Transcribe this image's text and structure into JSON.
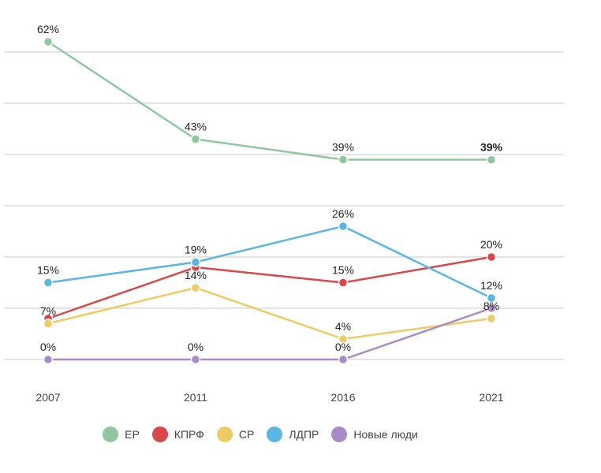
{
  "chart_data": {
    "type": "line",
    "categories": [
      "2007",
      "2011",
      "2016",
      "2021"
    ],
    "ylim": [
      0,
      70
    ],
    "grid": true,
    "legend_position": "bottom",
    "series": [
      {
        "name": "ЕР",
        "color": "#8fc8a0",
        "values": [
          62,
          43,
          39,
          39
        ],
        "labels": [
          "62%",
          "43%",
          "39%",
          "39%"
        ]
      },
      {
        "name": "КПРФ",
        "color": "#d9474a",
        "values": [
          8,
          18,
          15,
          20
        ],
        "labels": [
          "",
          "",
          "15%",
          "20%"
        ]
      },
      {
        "name": "СР",
        "color": "#efcb63",
        "values": [
          7,
          14,
          4,
          8
        ],
        "labels": [
          "7%",
          "14%",
          "4%",
          "8%"
        ]
      },
      {
        "name": "ЛДПР",
        "color": "#5ab7e3",
        "values": [
          15,
          19,
          26,
          12
        ],
        "labels": [
          "15%",
          "19%",
          "26%",
          "12%"
        ]
      },
      {
        "name": "Новые люди",
        "color": "#a98bc6",
        "values": [
          0,
          0,
          0,
          10
        ],
        "labels": [
          "0%",
          "0%",
          "0%",
          ""
        ]
      }
    ]
  }
}
